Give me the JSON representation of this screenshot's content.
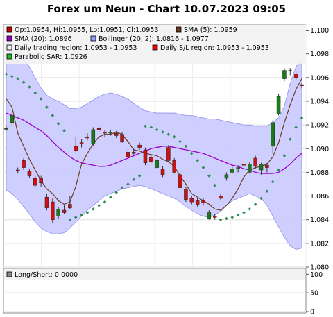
{
  "title": "Forex um Neun - Chart 10.07.2023 09:05",
  "main_legend": [
    {
      "label": "Op:1.0954, Hi:1.0955, Lo:1.0951, Cl:1.0953",
      "color": "#cc0000"
    },
    {
      "label": "SMA (5): 1.0959",
      "color": "#6b3a1e"
    },
    {
      "label": "SMA (20): 1.0896",
      "color": "#9900cc"
    },
    {
      "label": "Bollinger (20, 2): 1.0816 - 1.0977",
      "color": "#9999ff"
    },
    {
      "label": "Daily trading region: 1.0953 - 1.0953",
      "color": "#f0f0f0"
    },
    {
      "label": "Daily S/L region: 1.0953 - 1.0953",
      "color": "#ee0000"
    },
    {
      "label": "Parabolic SAR: 1.0926",
      "color": "#22bb22"
    }
  ],
  "sub_legend": [
    {
      "label": "Long/Short: 0.0000",
      "color": "#888888"
    }
  ],
  "colors": {
    "up": "#1a7a1a",
    "down": "#cc1111",
    "band_fill": "#ccccff",
    "band_line": "#8888ee",
    "sma5": "#6b3a1e",
    "sma20": "#9900cc",
    "sar": "#2e8b57",
    "mid": "#cc88ff"
  },
  "chart_data": [
    {
      "type": "candlestick",
      "y_ticks": [
        "1.100",
        "1.098",
        "1.096",
        "1.094",
        "1.092",
        "1.090",
        "1.088",
        "1.086",
        "1.084",
        "1.082",
        "1.080"
      ],
      "ylim": [
        1.08,
        1.1005
      ],
      "grid": true,
      "candles": [
        {
          "o": 1.0917,
          "h": 1.0919,
          "l": 1.0915,
          "c": 1.0917
        },
        {
          "o": 1.0922,
          "h": 1.093,
          "l": 1.0919,
          "c": 1.0928
        },
        {
          "o": 1.0882,
          "h": 1.0884,
          "l": 1.0879,
          "c": 1.0881
        },
        {
          "o": 1.089,
          "h": 1.0892,
          "l": 1.0882,
          "c": 1.0884
        },
        {
          "o": 1.0881,
          "h": 1.0883,
          "l": 1.0875,
          "c": 1.0877
        },
        {
          "o": 1.0875,
          "h": 1.0877,
          "l": 1.0867,
          "c": 1.0869
        },
        {
          "o": 1.0875,
          "h": 1.0877,
          "l": 1.0868,
          "c": 1.0871
        },
        {
          "o": 1.0859,
          "h": 1.0862,
          "l": 1.0848,
          "c": 1.085
        },
        {
          "o": 1.0855,
          "h": 1.0858,
          "l": 1.0837,
          "c": 1.084
        },
        {
          "o": 1.0843,
          "h": 1.0851,
          "l": 1.0841,
          "c": 1.0849
        },
        {
          "o": 1.0848,
          "h": 1.0852,
          "l": 1.0845,
          "c": 1.0846
        },
        {
          "o": 1.0853,
          "h": 1.086,
          "l": 1.0849,
          "c": 1.085
        },
        {
          "o": 1.0902,
          "h": 1.091,
          "l": 1.0897,
          "c": 1.0898
        },
        {
          "o": 1.0905,
          "h": 1.0908,
          "l": 1.0901,
          "c": 1.0904
        },
        {
          "o": 1.091,
          "h": 1.0913,
          "l": 1.0907,
          "c": 1.0909
        },
        {
          "o": 1.0904,
          "h": 1.0918,
          "l": 1.0902,
          "c": 1.0916
        },
        {
          "o": 1.0917,
          "h": 1.0919,
          "l": 1.0914,
          "c": 1.0916
        },
        {
          "o": 1.0914,
          "h": 1.0916,
          "l": 1.091,
          "c": 1.0913
        },
        {
          "o": 1.0913,
          "h": 1.0916,
          "l": 1.0911,
          "c": 1.0914
        },
        {
          "o": 1.0913,
          "h": 1.0915,
          "l": 1.0909,
          "c": 1.0911
        },
        {
          "o": 1.0912,
          "h": 1.0914,
          "l": 1.0905,
          "c": 1.0906
        },
        {
          "o": 1.0897,
          "h": 1.0899,
          "l": 1.0892,
          "c": 1.0893
        },
        {
          "o": 1.0897,
          "h": 1.09,
          "l": 1.0895,
          "c": 1.0896
        },
        {
          "o": 1.0903,
          "h": 1.0905,
          "l": 1.0899,
          "c": 1.0901
        },
        {
          "o": 1.0899,
          "h": 1.0901,
          "l": 1.0886,
          "c": 1.0888
        },
        {
          "o": 1.0893,
          "h": 1.0895,
          "l": 1.0888,
          "c": 1.0889
        },
        {
          "o": 1.0884,
          "h": 1.0891,
          "l": 1.0883,
          "c": 1.089
        },
        {
          "o": 1.0883,
          "h": 1.0885,
          "l": 1.0876,
          "c": 1.0878
        },
        {
          "o": 1.0901,
          "h": 1.0903,
          "l": 1.0889,
          "c": 1.089
        },
        {
          "o": 1.089,
          "h": 1.0892,
          "l": 1.0879,
          "c": 1.088
        },
        {
          "o": 1.0878,
          "h": 1.088,
          "l": 1.0866,
          "c": 1.0867
        },
        {
          "o": 1.0866,
          "h": 1.0868,
          "l": 1.0855,
          "c": 1.0857
        },
        {
          "o": 1.0858,
          "h": 1.086,
          "l": 1.0853,
          "c": 1.0855
        },
        {
          "o": 1.0856,
          "h": 1.0858,
          "l": 1.0851,
          "c": 1.0853
        },
        {
          "o": 1.0856,
          "h": 1.0858,
          "l": 1.0852,
          "c": 1.0854
        },
        {
          "o": 1.0841,
          "h": 1.0848,
          "l": 1.084,
          "c": 1.0846
        },
        {
          "o": 1.0843,
          "h": 1.0845,
          "l": 1.084,
          "c": 1.0842
        },
        {
          "o": 1.086,
          "h": 1.0862,
          "l": 1.0857,
          "c": 1.0858
        },
        {
          "o": 1.0875,
          "h": 1.088,
          "l": 1.0873,
          "c": 1.0878
        },
        {
          "o": 1.088,
          "h": 1.0885,
          "l": 1.0879,
          "c": 1.0883
        },
        {
          "o": 1.0883,
          "h": 1.0886,
          "l": 1.088,
          "c": 1.0884
        },
        {
          "o": 1.0887,
          "h": 1.0889,
          "l": 1.0885,
          "c": 1.0886
        },
        {
          "o": 1.088,
          "h": 1.0889,
          "l": 1.0879,
          "c": 1.0887
        },
        {
          "o": 1.0892,
          "h": 1.0894,
          "l": 1.0883,
          "c": 1.0885
        },
        {
          "o": 1.0882,
          "h": 1.0888,
          "l": 1.0878,
          "c": 1.0887
        },
        {
          "o": 1.0886,
          "h": 1.0888,
          "l": 1.088,
          "c": 1.0884
        },
        {
          "o": 1.0902,
          "h": 1.0924,
          "l": 1.0896,
          "c": 1.0922
        },
        {
          "o": 1.0929,
          "h": 1.0946,
          "l": 1.0928,
          "c": 1.0944
        },
        {
          "o": 1.0959,
          "h": 1.0968,
          "l": 1.0957,
          "c": 1.0966
        },
        {
          "o": 1.0966,
          "h": 1.0968,
          "l": 1.0962,
          "c": 1.0966
        },
        {
          "o": 1.0963,
          "h": 1.0965,
          "l": 1.0958,
          "c": 1.096
        },
        {
          "o": 1.0954,
          "h": 1.0955,
          "l": 1.0951,
          "c": 1.0953
        }
      ],
      "sma5": [
        1.0942,
        1.0935,
        1.0913,
        1.0902,
        1.0891,
        1.0882,
        1.0873,
        1.0866,
        1.0862,
        1.0856,
        1.0853,
        1.0855,
        1.0868,
        1.0887,
        1.0896,
        1.0904,
        1.091,
        1.0912,
        1.0912,
        1.0914,
        1.0912,
        1.0906,
        1.0899,
        1.0898,
        1.0896,
        1.0895,
        1.0894,
        1.0891,
        1.0889,
        1.0885,
        1.0877,
        1.087,
        1.0862,
        1.0859,
        1.0856,
        1.0853,
        1.0849,
        1.0848,
        1.0852,
        1.0858,
        1.0866,
        1.0876,
        1.0882,
        1.0884,
        1.0885,
        1.0887,
        1.0893,
        1.0905,
        1.0922,
        1.0937,
        1.095,
        1.0959
      ],
      "sma20": [
        1.093,
        1.0928,
        1.0926,
        1.0924,
        1.0921,
        1.0918,
        1.0915,
        1.0911,
        1.0906,
        1.0901,
        1.0897,
        1.0893,
        1.089,
        1.0888,
        1.0887,
        1.0886,
        1.0885,
        1.0885,
        1.0886,
        1.0888,
        1.089,
        1.0892,
        1.0894,
        1.0896,
        1.0898,
        1.09,
        1.0901,
        1.0902,
        1.0902,
        1.0901,
        1.09,
        1.0899,
        1.0898,
        1.0897,
        1.0896,
        1.0894,
        1.0892,
        1.089,
        1.0888,
        1.0886,
        1.0885,
        1.0883,
        1.0882,
        1.088,
        1.0879,
        1.0879,
        1.0879,
        1.088,
        1.0883,
        1.0887,
        1.0892,
        1.0896
      ],
      "bollinger_upper": [
        1.0994,
        1.099,
        1.0985,
        1.0977,
        1.0969,
        1.096,
        1.0951,
        1.0945,
        1.0942,
        1.094,
        1.0937,
        1.0934,
        1.0934,
        1.0935,
        1.0938,
        1.0941,
        1.0944,
        1.0946,
        1.0947,
        1.0946,
        1.0944,
        1.0942,
        1.0938,
        1.0935,
        1.0932,
        1.0931,
        1.093,
        1.093,
        1.093,
        1.093,
        1.0929,
        1.0928,
        1.0928,
        1.0927,
        1.0926,
        1.0925,
        1.0925,
        1.0924,
        1.0923,
        1.0922,
        1.0921,
        1.092,
        1.092,
        1.0919,
        1.0919,
        1.0919,
        1.0922,
        1.0926,
        1.0936,
        1.0955,
        1.0969,
        1.0977
      ],
      "bollinger_lower": [
        1.0865,
        1.0862,
        1.0857,
        1.0851,
        1.0845,
        1.0838,
        1.0833,
        1.083,
        1.0828,
        1.0828,
        1.0829,
        1.0833,
        1.0838,
        1.0843,
        1.0848,
        1.0852,
        1.0856,
        1.086,
        1.0862,
        1.0864,
        1.0866,
        1.0867,
        1.0868,
        1.0869,
        1.0868,
        1.0866,
        1.0864,
        1.0862,
        1.086,
        1.0858,
        1.0855,
        1.0851,
        1.0848,
        1.0845,
        1.0843,
        1.0842,
        1.0844,
        1.0847,
        1.0852,
        1.0856,
        1.0858,
        1.086,
        1.0862,
        1.086,
        1.0858,
        1.0852,
        1.0843,
        1.0834,
        1.0825,
        1.0818,
        1.0815,
        1.0816
      ],
      "parabolic_sar": [
        1.0963,
        1.0961,
        1.0959,
        1.0956,
        1.0952,
        1.0947,
        1.0942,
        1.0935,
        1.0928,
        1.0921,
        1.0915,
        1.084,
        1.0842,
        1.0844,
        1.0846,
        1.0849,
        1.0852,
        1.0855,
        1.0859,
        1.0863,
        1.0867,
        1.087,
        1.0874,
        1.0877,
        1.0919,
        1.0918,
        1.0916,
        1.0914,
        1.0912,
        1.091,
        1.0906,
        1.0902,
        1.0896,
        1.089,
        1.0884,
        1.0877,
        1.0869,
        1.084,
        1.0841,
        1.0842,
        1.0844,
        1.0846,
        1.0849,
        1.0853,
        1.0858,
        1.0864,
        1.0872,
        1.0882,
        1.0894,
        1.0908,
        1.0918,
        1.0926
      ]
    },
    {
      "type": "line",
      "y_ticks": [
        "100",
        "50",
        "0"
      ],
      "ylim": [
        0,
        110
      ],
      "values": []
    }
  ]
}
